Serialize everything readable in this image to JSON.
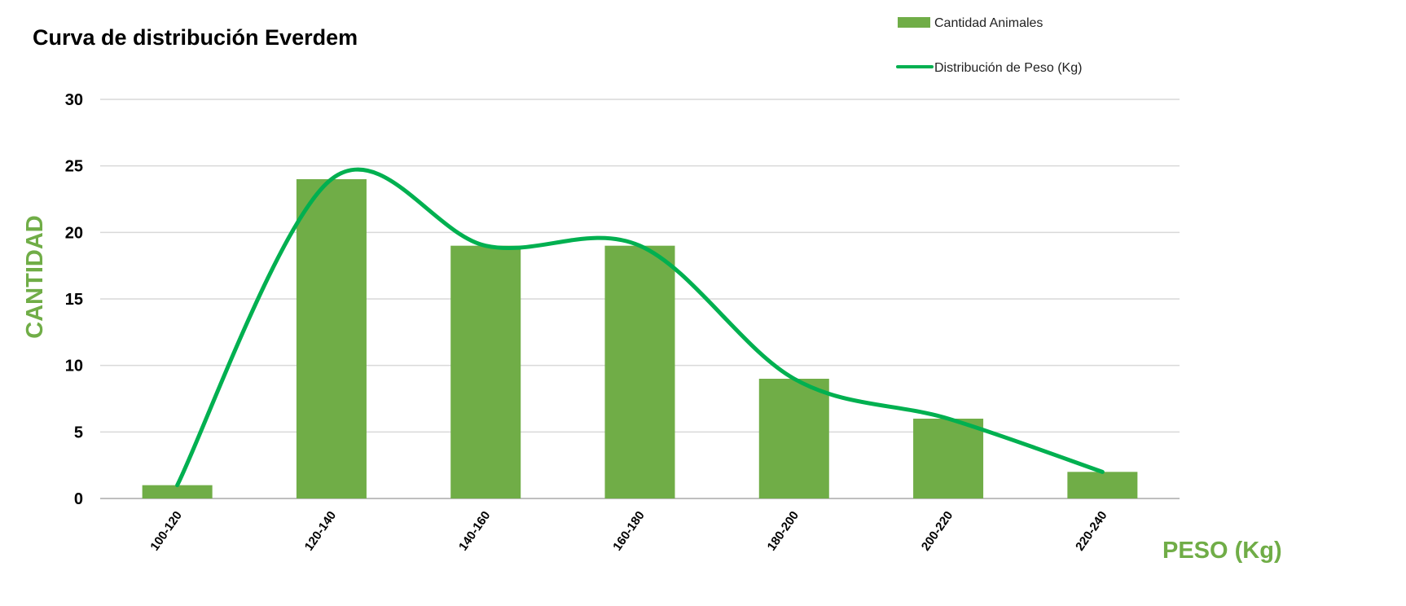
{
  "colors": {
    "bar": "#70AD47",
    "line": "#00B050",
    "axis_title": "#70AD47",
    "grid": "#D9D9D9",
    "axis": "#BFBFBF"
  },
  "chart_data": {
    "type": "bar",
    "title": "Curva de distribución Everdem",
    "xlabel": "PESO (Kg)",
    "ylabel": "CANTIDAD",
    "ylim": [
      0,
      30
    ],
    "yticks": [
      0,
      5,
      10,
      15,
      20,
      25,
      30
    ],
    "grid": true,
    "legend_position": "top-right",
    "categories": [
      "100-120",
      "120-140",
      "140-160",
      "160-180",
      "180-200",
      "200-220",
      "220-240"
    ],
    "series": [
      {
        "name": "Cantidad Animales",
        "type": "bar",
        "values": [
          1,
          24,
          19,
          19,
          9,
          6,
          2
        ]
      },
      {
        "name": "Distribución de Peso (Kg)",
        "type": "line",
        "smooth": true,
        "values": [
          1,
          24,
          19,
          19,
          9,
          6,
          2
        ]
      }
    ]
  }
}
